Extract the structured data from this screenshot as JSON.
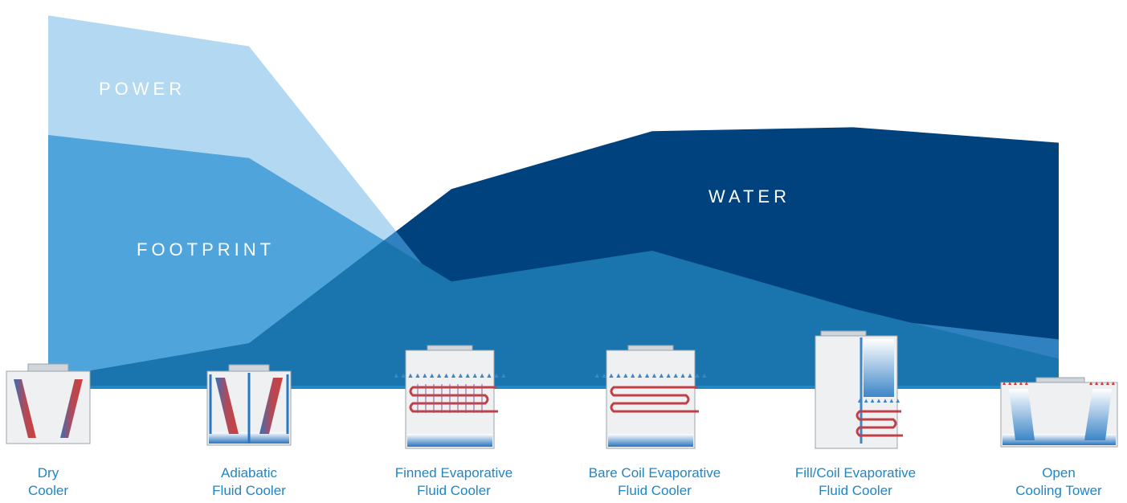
{
  "chart_data": {
    "type": "area",
    "title": "",
    "categories": [
      [
        "Dry",
        "Cooler"
      ],
      [
        "Adiabatic",
        "Fluid Cooler"
      ],
      [
        "Finned Evaporative",
        "Fluid Cooler"
      ],
      [
        "Bare Coil Evaporative",
        "Fluid Cooler"
      ],
      [
        "Fill/Coil Evaporative",
        "Fluid Cooler"
      ],
      [
        "Open",
        "Cooling Tower"
      ]
    ],
    "series": [
      {
        "name": "POWER",
        "values": [
          96,
          88,
          22,
          22,
          18,
          12
        ],
        "color": "#b3d8f1"
      },
      {
        "name": "FOOTPRINT",
        "values": [
          65,
          59,
          27,
          35,
          20,
          7
        ],
        "color": "#6fbbe7"
      },
      {
        "name": "WATER",
        "values": [
          2,
          11,
          51,
          66,
          67,
          63
        ],
        "color": "#00427e"
      }
    ],
    "ylim": [
      0,
      100
    ],
    "grid": false,
    "legend": "none",
    "colors": {
      "base_band": "#2088c4",
      "blend_power_footprint": "#4fa4dc",
      "blend_water_light": "#2f82bf",
      "blend_water_footprint": "#1a74ad",
      "category_label": "#1f86c6"
    }
  }
}
